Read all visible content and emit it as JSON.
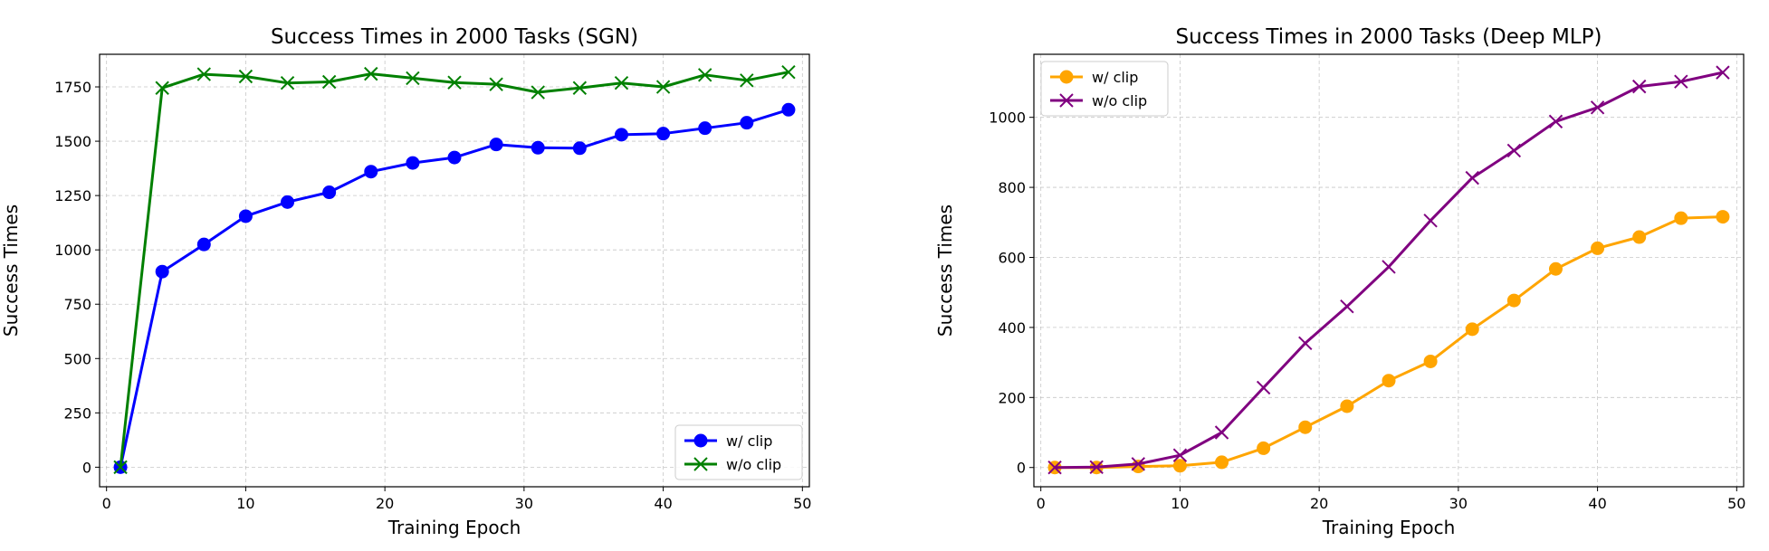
{
  "chart_data": [
    {
      "type": "line",
      "title": "Success Times in 2000 Tasks (SGN)",
      "xlabel": "Training Epoch",
      "ylabel": "Success Times",
      "x": [
        1,
        4,
        7,
        10,
        13,
        16,
        19,
        22,
        25,
        28,
        31,
        34,
        37,
        40,
        43,
        46,
        49
      ],
      "xlim": [
        -0.5,
        50.5
      ],
      "ylim": [
        -90,
        1900
      ],
      "xticks": [
        0,
        10,
        20,
        30,
        40,
        50
      ],
      "yticks": [
        0,
        250,
        500,
        750,
        1000,
        1250,
        1500,
        1750
      ],
      "grid": true,
      "legend_position": "lower-right",
      "series": [
        {
          "name": "w/ clip",
          "color": "#0000ff",
          "marker": "circle",
          "values": [
            0,
            900,
            1025,
            1155,
            1220,
            1265,
            1360,
            1400,
            1425,
            1485,
            1470,
            1468,
            1530,
            1535,
            1560,
            1585,
            1645
          ]
        },
        {
          "name": "w/o clip",
          "color": "#008000",
          "marker": "x",
          "values": [
            0,
            1745,
            1808,
            1798,
            1768,
            1773,
            1810,
            1790,
            1770,
            1762,
            1725,
            1745,
            1768,
            1750,
            1805,
            1780,
            1818
          ]
        }
      ]
    },
    {
      "type": "line",
      "title": "Success Times in 2000 Tasks (Deep MLP)",
      "xlabel": "Training Epoch",
      "ylabel": "Success Times",
      "x": [
        1,
        4,
        7,
        10,
        13,
        16,
        19,
        22,
        25,
        28,
        31,
        34,
        37,
        40,
        43,
        46,
        49
      ],
      "xlim": [
        -0.5,
        50.5
      ],
      "ylim": [
        -55,
        1180
      ],
      "xticks": [
        0,
        10,
        20,
        30,
        40,
        50
      ],
      "yticks": [
        0,
        200,
        400,
        600,
        800,
        1000
      ],
      "grid": true,
      "legend_position": "upper-left",
      "series": [
        {
          "name": "w/ clip",
          "color": "#ffa500",
          "marker": "circle",
          "values": [
            0,
            0,
            3,
            5,
            15,
            55,
            115,
            175,
            248,
            303,
            395,
            477,
            567,
            626,
            658,
            712,
            716
          ]
        },
        {
          "name": "w/o clip",
          "color": "#800080",
          "marker": "x",
          "values": [
            0,
            1,
            10,
            35,
            100,
            228,
            355,
            460,
            573,
            705,
            827,
            905,
            988,
            1028,
            1088,
            1102,
            1128
          ]
        }
      ]
    }
  ]
}
